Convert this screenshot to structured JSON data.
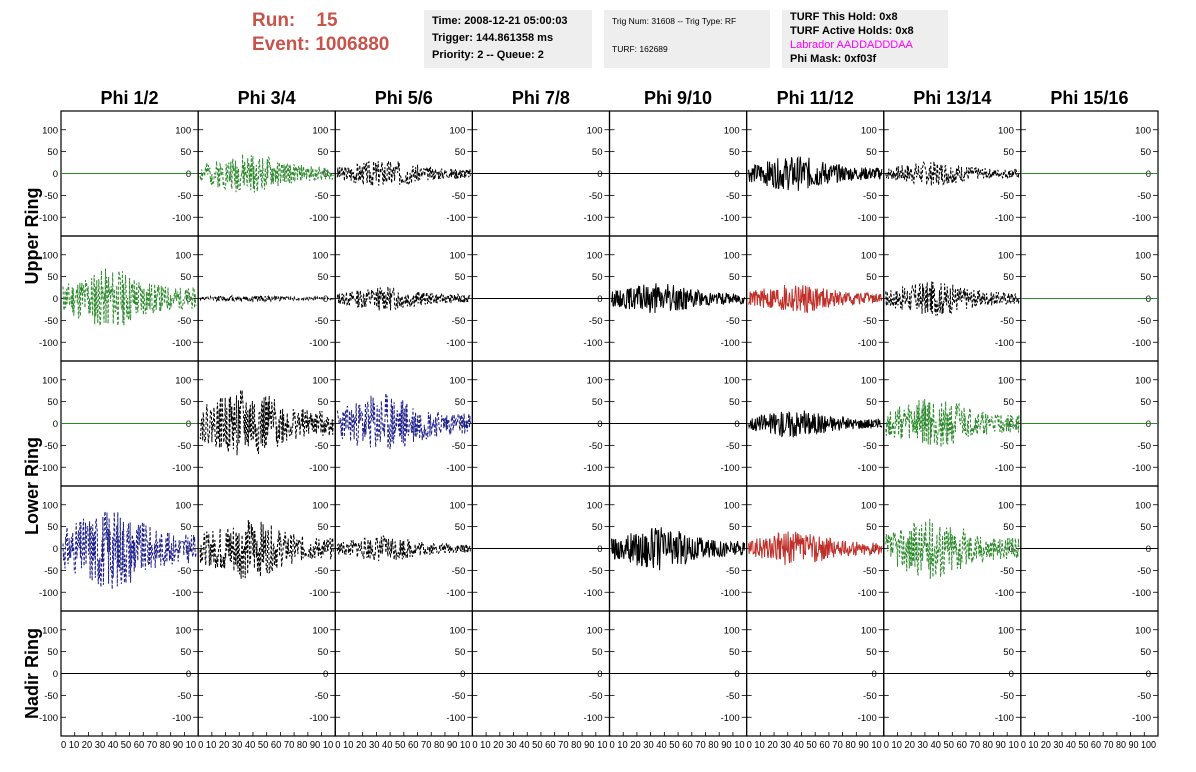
{
  "header": {
    "run_label": "Run:",
    "run_value": "15",
    "event_label": "Event:",
    "event_value": "1006880",
    "time": "Time: 2008-12-21 05:00:03",
    "trigger": "Trigger: 144.861358 ms",
    "priority": "Priority: 2 -- Queue: 2",
    "trig_num": "Trig Num: 31608 -- Trig Type: RF",
    "turf": "TURF: 162689",
    "turf_this_hold": "TURF This Hold: 0x8",
    "turf_active_holds": "TURF Active Holds: 0x8",
    "labrador": "Labrador AADDADDDAA",
    "labrador_color": "#ff00ff",
    "phi_mask": "Phi Mask: 0xf03f",
    "run_color": "#c8534b"
  },
  "chart_data": {
    "type": "line",
    "columns": [
      "Phi 1/2",
      "Phi 3/4",
      "Phi 5/6",
      "Phi 7/8",
      "Phi 9/10",
      "Phi 11/12",
      "Phi 13/14",
      "Phi 15/16"
    ],
    "row_labels": [
      "Upper Ring",
      "Lower Ring",
      "Nadir Ring"
    ],
    "ylim": [
      -120,
      120
    ],
    "xlim": [
      0,
      100
    ],
    "yticks": [
      100,
      50,
      0,
      -50,
      -100
    ],
    "xticks_first": [
      0,
      10,
      20,
      30,
      40,
      50,
      60,
      70,
      80,
      90,
      100
    ],
    "x_axis_label": "0 10 20 30 40 50 60 70 80 90 10",
    "x_axis_label_last": "0 10 20 30 40 50 60 70 80 90 100",
    "colors": {
      "green": "#2a8a2a",
      "black": "#000000",
      "blue": "#1c1c8c",
      "red": "#c0302a"
    },
    "rows": [
      [
        {
          "style": "flat",
          "color": "green",
          "amp": 0,
          "seed": 1
        },
        {
          "style": "dashed",
          "color": "green",
          "amp": 45,
          "seed": 2
        },
        {
          "style": "dashed",
          "color": "black",
          "amp": 32,
          "seed": 3
        },
        {
          "style": "flat",
          "color": "black",
          "amp": 0,
          "seed": 4
        },
        {
          "style": "flat",
          "color": "black",
          "amp": 0,
          "seed": 5
        },
        {
          "style": "solid",
          "color": "black",
          "amp": 40,
          "seed": 6
        },
        {
          "style": "dashed",
          "color": "black",
          "amp": 28,
          "seed": 7
        },
        {
          "style": "flat",
          "color": "green",
          "amp": 0,
          "seed": 8
        }
      ],
      [
        {
          "style": "dashed",
          "color": "green",
          "amp": 70,
          "seed": 11
        },
        {
          "style": "dashed",
          "color": "black",
          "amp": 8,
          "seed": 12
        },
        {
          "style": "dashed",
          "color": "black",
          "amp": 28,
          "seed": 13
        },
        {
          "style": "flat",
          "color": "black",
          "amp": 0,
          "seed": 14
        },
        {
          "style": "solid",
          "color": "black",
          "amp": 35,
          "seed": 15
        },
        {
          "style": "solid",
          "color": "red",
          "amp": 35,
          "seed": 16
        },
        {
          "style": "dashed",
          "color": "black",
          "amp": 40,
          "seed": 17
        },
        {
          "style": "flat",
          "color": "green",
          "amp": 0,
          "seed": 18
        }
      ],
      [
        {
          "style": "flat",
          "color": "green",
          "amp": 0,
          "seed": 21
        },
        {
          "style": "dashed",
          "color": "black",
          "amp": 80,
          "seed": 22
        },
        {
          "style": "dashed",
          "color": "blue",
          "amp": 70,
          "seed": 23
        },
        {
          "style": "flat",
          "color": "black",
          "amp": 0,
          "seed": 24
        },
        {
          "style": "flat",
          "color": "black",
          "amp": 0,
          "seed": 25
        },
        {
          "style": "solid",
          "color": "black",
          "amp": 32,
          "seed": 26
        },
        {
          "style": "dashed",
          "color": "green",
          "amp": 60,
          "seed": 27
        },
        {
          "style": "flat",
          "color": "green",
          "amp": 0,
          "seed": 28
        }
      ],
      [
        {
          "style": "dashed",
          "color": "blue",
          "amp": 95,
          "seed": 31
        },
        {
          "style": "dashed",
          "color": "black",
          "amp": 70,
          "seed": 32
        },
        {
          "style": "dashed",
          "color": "black",
          "amp": 30,
          "seed": 33
        },
        {
          "style": "flat",
          "color": "black",
          "amp": 0,
          "seed": 34
        },
        {
          "style": "solid",
          "color": "black",
          "amp": 50,
          "seed": 35
        },
        {
          "style": "solid",
          "color": "red",
          "amp": 40,
          "seed": 36
        },
        {
          "style": "dashed",
          "color": "green",
          "amp": 70,
          "seed": 37
        },
        {
          "style": "flat",
          "color": "black",
          "amp": 0,
          "seed": 38
        }
      ],
      [
        {
          "style": "flat",
          "color": "black",
          "amp": 0,
          "seed": 41
        },
        {
          "style": "flat",
          "color": "black",
          "amp": 0,
          "seed": 42
        },
        {
          "style": "flat",
          "color": "black",
          "amp": 0,
          "seed": 43
        },
        {
          "style": "flat",
          "color": "black",
          "amp": 0,
          "seed": 44
        },
        {
          "style": "flat",
          "color": "black",
          "amp": 0,
          "seed": 45
        },
        {
          "style": "flat",
          "color": "black",
          "amp": 0,
          "seed": 46
        },
        {
          "style": "flat",
          "color": "black",
          "amp": 0,
          "seed": 47
        },
        {
          "style": "flat",
          "color": "black",
          "amp": 0,
          "seed": 48
        }
      ]
    ]
  }
}
